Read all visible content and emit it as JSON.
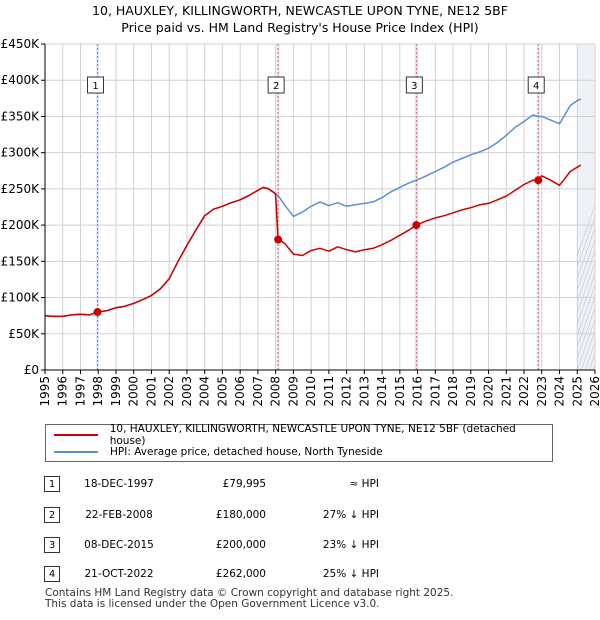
{
  "title_line1": "10, HAUXLEY, KILLINGWORTH, NEWCASTLE UPON TYNE, NE12 5BF",
  "title_line2": "Price paid vs. HM Land Registry's House Price Index (HPI)",
  "colors": {
    "price_paid": "#cc0000",
    "hpi": "#5b8fd6",
    "shade": "#dde6f4",
    "event_line": "#e06060",
    "grid": "#d0d0d0"
  },
  "chart_data": {
    "type": "line",
    "title": "Price paid vs. HM Land Registry's House Price Index (HPI)",
    "xlim": [
      1995,
      2026
    ],
    "ylim": [
      0,
      450000
    ],
    "x_ticks": [
      1995,
      1996,
      1997,
      1998,
      1999,
      2000,
      2001,
      2002,
      2003,
      2004,
      2005,
      2006,
      2007,
      2008,
      2009,
      2010,
      2011,
      2012,
      2013,
      2014,
      2015,
      2016,
      2017,
      2018,
      2019,
      2020,
      2021,
      2022,
      2023,
      2024,
      2025,
      2026
    ],
    "y_ticks": [
      0,
      50000,
      100000,
      150000,
      200000,
      250000,
      300000,
      350000,
      400000,
      450000
    ],
    "y_tick_labels": [
      "£0",
      "£50K",
      "£100K",
      "£150K",
      "£200K",
      "£250K",
      "£300K",
      "£350K",
      "£400K",
      "£450K"
    ],
    "future_shade_from": 2025.0,
    "series": [
      {
        "name": "10, HAUXLEY, KILLINGWORTH, NEWCASTLE UPON TYNE, NE12 5BF (detached house)",
        "color": "#cc0000",
        "x": [
          1995.0,
          1995.5,
          1996.0,
          1996.5,
          1997.0,
          1997.5,
          1997.96,
          1998.5,
          1999.0,
          1999.5,
          2000.0,
          2000.5,
          2001.0,
          2001.5,
          2002.0,
          2002.5,
          2003.0,
          2003.5,
          2004.0,
          2004.5,
          2005.0,
          2005.5,
          2006.0,
          2006.5,
          2007.0,
          2007.3,
          2007.6,
          2007.9,
          2008.0,
          2008.14,
          2008.5,
          2009.0,
          2009.5,
          2010.0,
          2010.5,
          2011.0,
          2011.5,
          2012.0,
          2012.5,
          2013.0,
          2013.5,
          2014.0,
          2014.5,
          2015.0,
          2015.5,
          2015.93,
          2016.5,
          2017.0,
          2017.5,
          2018.0,
          2018.5,
          2019.0,
          2019.5,
          2020.0,
          2020.5,
          2021.0,
          2021.5,
          2022.0,
          2022.5,
          2022.8,
          2023.0,
          2023.5,
          2024.0,
          2024.3,
          2024.6,
          2025.0,
          2025.2
        ],
        "y": [
          75000,
          74000,
          74000,
          76000,
          77000,
          76000,
          79995,
          82000,
          86000,
          88000,
          92000,
          97000,
          103000,
          112000,
          126000,
          150000,
          172000,
          193000,
          213000,
          222000,
          226000,
          231000,
          235000,
          241000,
          248000,
          252000,
          250000,
          245000,
          242000,
          180000,
          175000,
          160000,
          158000,
          165000,
          168000,
          164000,
          170000,
          166000,
          163000,
          166000,
          168000,
          173000,
          179000,
          186000,
          193000,
          200000,
          206000,
          210000,
          213000,
          217000,
          221000,
          224000,
          228000,
          230000,
          235000,
          240000,
          248000,
          256000,
          262000,
          262000,
          268000,
          262000,
          255000,
          264000,
          274000,
          280000,
          283000
        ]
      },
      {
        "name": "HPI: Average price, detached house, North Tyneside",
        "color": "#5b8fd6",
        "x": [
          1995.0,
          1995.5,
          1996.0,
          1996.5,
          1997.0,
          1997.5,
          1997.96,
          1998.5,
          1999.0,
          1999.5,
          2000.0,
          2000.5,
          2001.0,
          2001.5,
          2002.0,
          2002.5,
          2003.0,
          2003.5,
          2004.0,
          2004.5,
          2005.0,
          2005.5,
          2006.0,
          2006.5,
          2007.0,
          2007.3,
          2007.6,
          2007.9,
          2008.14,
          2008.5,
          2009.0,
          2009.5,
          2010.0,
          2010.5,
          2011.0,
          2011.5,
          2012.0,
          2012.5,
          2013.0,
          2013.5,
          2014.0,
          2014.5,
          2015.0,
          2015.5,
          2015.93,
          2016.5,
          2017.0,
          2017.5,
          2018.0,
          2018.5,
          2019.0,
          2019.5,
          2020.0,
          2020.5,
          2021.0,
          2021.5,
          2022.0,
          2022.5,
          2022.8,
          2023.0,
          2023.5,
          2024.0,
          2024.3,
          2024.6,
          2025.0,
          2025.2
        ],
        "y": [
          75000,
          74000,
          74000,
          76000,
          77000,
          76000,
          80000,
          82000,
          86000,
          88000,
          92000,
          97000,
          103000,
          112000,
          126000,
          150000,
          172000,
          193000,
          213000,
          222000,
          226000,
          231000,
          235000,
          241000,
          248000,
          252000,
          250000,
          245000,
          241000,
          228000,
          212000,
          218000,
          226000,
          232000,
          227000,
          231000,
          226000,
          228000,
          230000,
          232000,
          238000,
          246000,
          252000,
          258000,
          262000,
          268000,
          274000,
          280000,
          287000,
          292000,
          297000,
          301000,
          306000,
          314000,
          324000,
          335000,
          343000,
          352000,
          350000,
          350000,
          345000,
          340000,
          352000,
          365000,
          372000,
          374000
        ]
      }
    ],
    "events": [
      {
        "label": "1",
        "x": 1997.96,
        "price": 79995
      },
      {
        "label": "2",
        "x": 2008.14,
        "price": 180000
      },
      {
        "label": "3",
        "x": 2015.93,
        "price": 200000
      },
      {
        "label": "4",
        "x": 2022.8,
        "price": 262000
      }
    ]
  },
  "legend": {
    "price_paid_label": "10, HAUXLEY, KILLINGWORTH, NEWCASTLE UPON TYNE, NE12 5BF (detached house)",
    "hpi_label": "HPI: Average price, detached house, North Tyneside"
  },
  "sales": [
    {
      "num": "1",
      "date": "18-DEC-1997",
      "price": "£79,995",
      "hpi": "≈ HPI"
    },
    {
      "num": "2",
      "date": "22-FEB-2008",
      "price": "£180,000",
      "hpi": "27% ↓ HPI"
    },
    {
      "num": "3",
      "date": "08-DEC-2015",
      "price": "£200,000",
      "hpi": "23% ↓ HPI"
    },
    {
      "num": "4",
      "date": "21-OCT-2022",
      "price": "£262,000",
      "hpi": "25% ↓ HPI"
    }
  ],
  "footer_line1": "Contains HM Land Registry data © Crown copyright and database right 2025.",
  "footer_line2": "This data is licensed under the Open Government Licence v3.0."
}
